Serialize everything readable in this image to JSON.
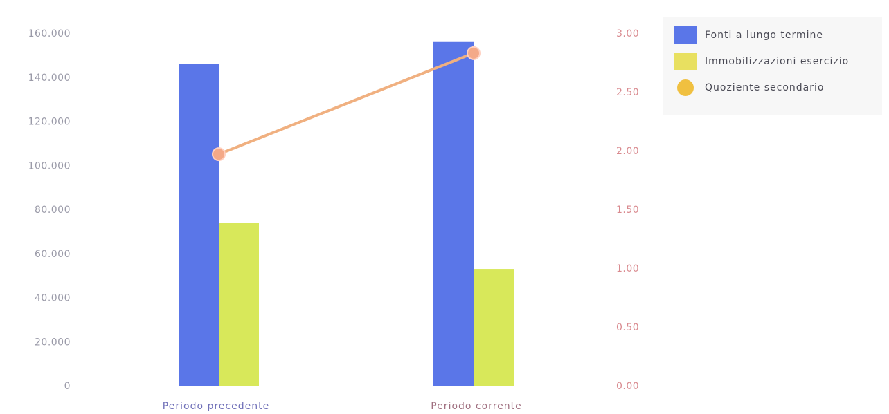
{
  "chart_data": {
    "type": "bar",
    "categories": [
      "Periodo precedente",
      "Periodo corrente"
    ],
    "series": [
      {
        "name": "Fonti a lungo termine",
        "type": "bar",
        "axis": "left",
        "values": [
          146000,
          156000
        ],
        "color": "#5a76e8"
      },
      {
        "name": "Immobilizzazioni esercizio",
        "type": "bar",
        "axis": "left",
        "values": [
          74000,
          53000
        ],
        "color": "#d8e85a"
      },
      {
        "name": "Quoziente secondario",
        "type": "line",
        "axis": "right",
        "values": [
          1.97,
          2.83
        ],
        "color": "#f0b080"
      }
    ],
    "y_left": {
      "ylim": [
        0,
        160000
      ],
      "ticks": [
        "0",
        "20.000",
        "40.000",
        "60.000",
        "80.000",
        "100.000",
        "120.000",
        "140.000",
        "160.000"
      ]
    },
    "y_right": {
      "ylim": [
        0,
        3.0
      ],
      "ticks": [
        "0.00",
        "0.50",
        "1.00",
        "1.50",
        "2.00",
        "2.50",
        "3.00"
      ]
    },
    "category_label_colors": [
      "#7070b8",
      "#a07080"
    ],
    "legend": {
      "position": "top-right",
      "items": [
        {
          "label": "Fonti a lungo termine",
          "color": "#5a76e8",
          "shape": "square"
        },
        {
          "label": "Immobilizzazioni esercizio",
          "color": "#e8e060",
          "shape": "square"
        },
        {
          "label": "Quoziente secondario",
          "color": "#f0c040",
          "shape": "circle"
        }
      ]
    },
    "grid": false
  }
}
